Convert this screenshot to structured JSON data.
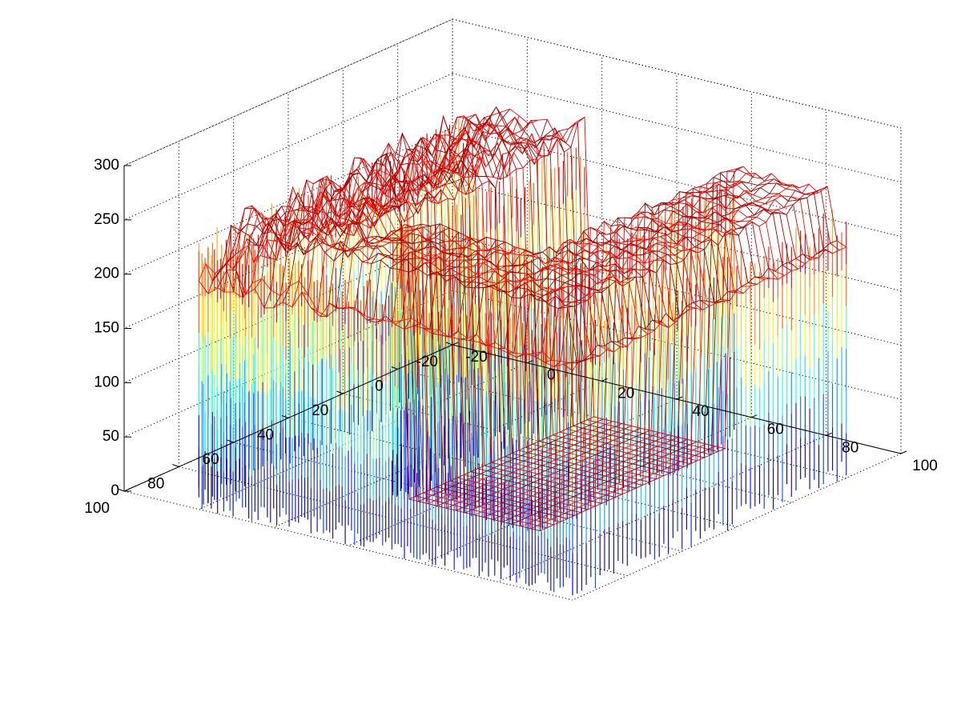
{
  "chart_data": {
    "type": "mesh3d",
    "title": "",
    "xlabel": "",
    "ylabel": "",
    "zlabel": "",
    "grid": true,
    "colormap": "jet",
    "xlim": [
      -20,
      100
    ],
    "ylim": [
      -20,
      100
    ],
    "zlim": [
      0,
      300
    ],
    "xticks": [
      -20,
      0,
      20,
      40,
      60,
      80,
      100
    ],
    "yticks": [
      -20,
      0,
      20,
      40,
      60,
      80,
      100
    ],
    "zticks": [
      0,
      50,
      100,
      150,
      200,
      250,
      300
    ],
    "xtick_labels": [
      "-20",
      "0",
      "20",
      "40",
      "60",
      "80",
      "100"
    ],
    "ytick_labels": [
      "-20",
      "0",
      "20",
      "40",
      "60",
      "80",
      "100"
    ],
    "ztick_labels": [
      "0",
      "50",
      "100",
      "150",
      "200",
      "250",
      "300"
    ],
    "surface": {
      "description_shape": "raised U-shaped block with an opening",
      "top_height": 260,
      "floor_height": 0,
      "x_range": [
        0,
        100
      ],
      "y_range": [
        0,
        100
      ],
      "opening_x": [
        30,
        70
      ],
      "opening_y": [
        0,
        70
      ],
      "color_low": "#0000c8",
      "color_mid": "#40ffc0",
      "color_high": "#b00000"
    }
  }
}
